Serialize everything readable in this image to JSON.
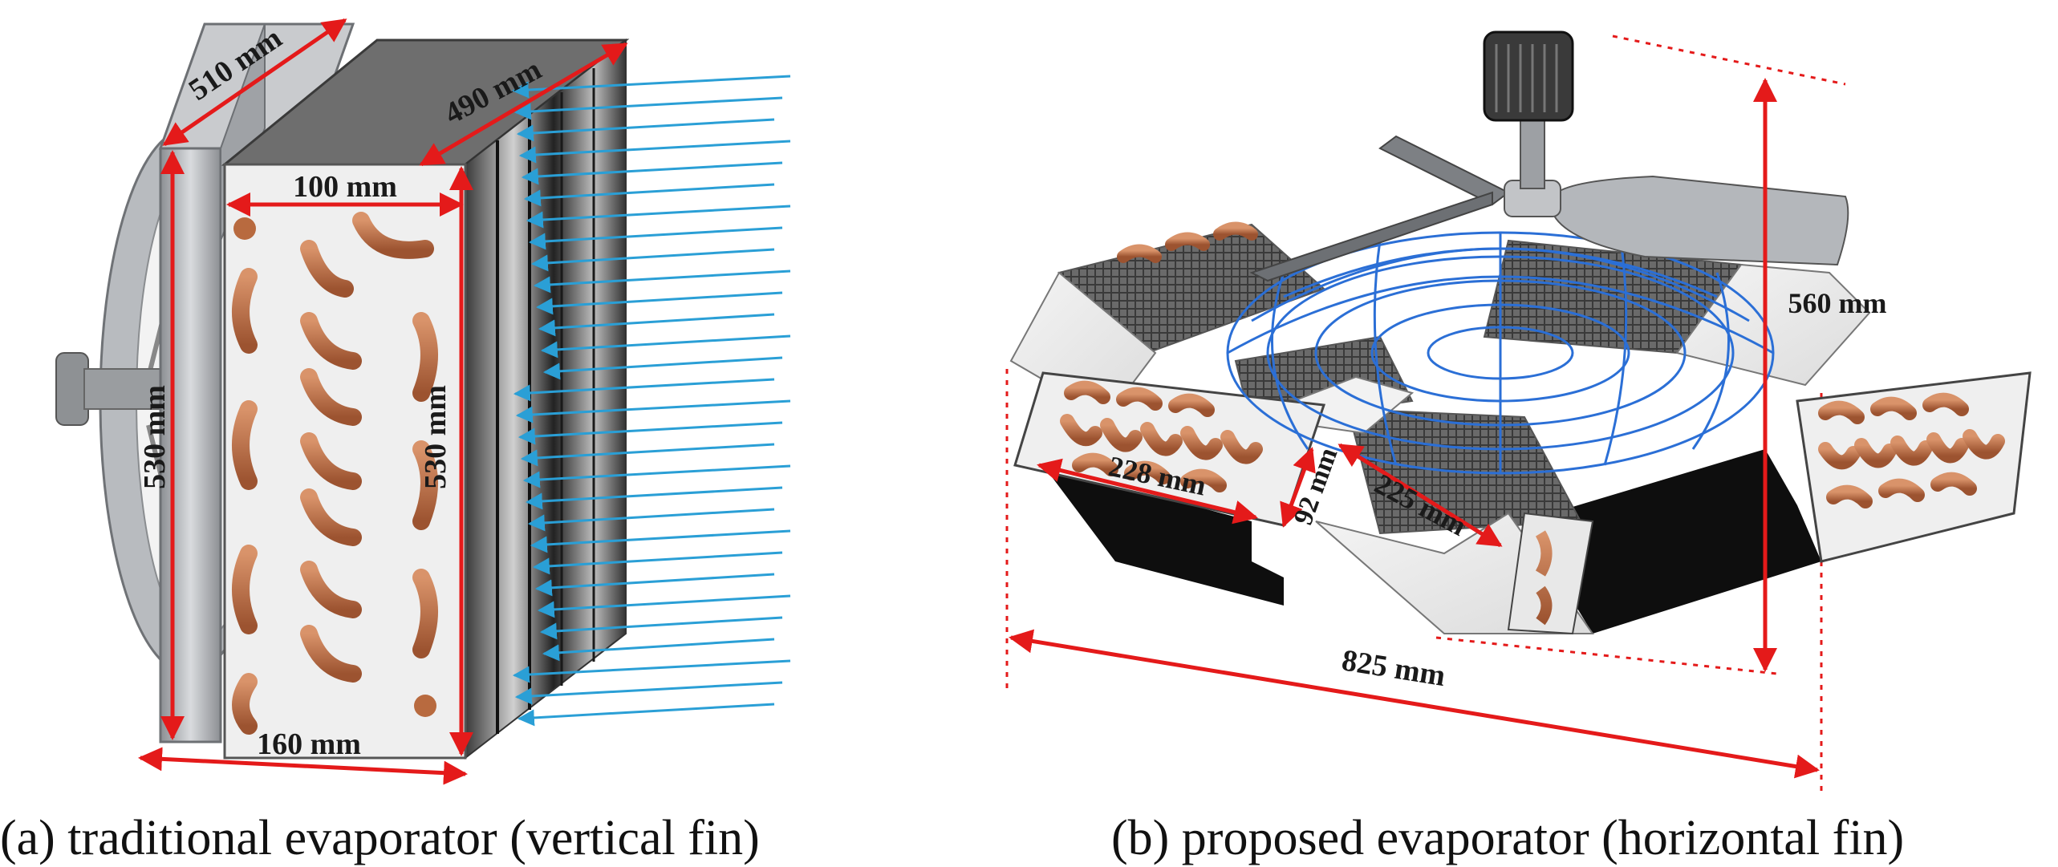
{
  "panel_a": {
    "caption": "(a) traditional evaporator (vertical fin)",
    "dimensions": {
      "fan_top": "510 mm",
      "body_top": "490 mm",
      "front_width": "100 mm",
      "fan_height": "530 mm",
      "coil_height": "530 mm",
      "base_width": "160 mm"
    }
  },
  "panel_b": {
    "caption": "(b) proposed evaporator (horizontal fin)",
    "dimensions": {
      "height": "560 mm",
      "coil_length": "228 mm",
      "coil_depth": "92 mm",
      "side_length": "225 mm",
      "diameter": "825 mm"
    }
  },
  "colors": {
    "dimension_line": "#e41a1a",
    "airflow": "#2a9fd6",
    "copper": "#b86a3f",
    "mesh": "#2b6fd6",
    "metal": "#a9acb0"
  }
}
